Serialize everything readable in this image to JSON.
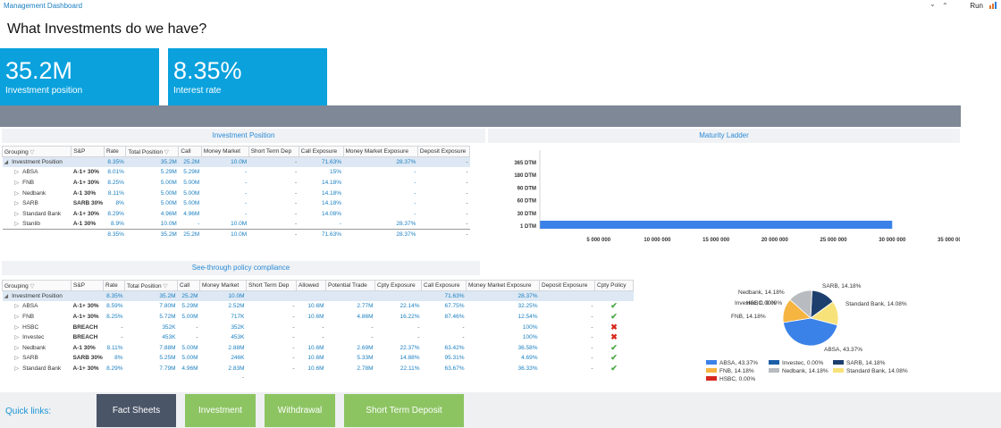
{
  "app": {
    "title": "Management Dashboard",
    "run": "Run",
    "chevron_down": "⌄",
    "chevron_up": "⌃"
  },
  "page_title": "What Investments do we have?",
  "kpis": [
    {
      "value": "35.2M",
      "label": "Investment position"
    },
    {
      "value": "8.35%",
      "label": "Interest rate"
    }
  ],
  "investment_position": {
    "title": "Investment Position",
    "columns": [
      "Grouping",
      "S&P",
      "Rate",
      "Total Position",
      "Call",
      "Money Market",
      "Short Term Dep",
      "Call Exposure",
      "Money Market Exposure",
      "Deposit Exposure"
    ],
    "rows": [
      {
        "group": "Investment Position",
        "sp": "",
        "rate": "8.35%",
        "total": "35.2M",
        "call": "25.2M",
        "mm": "10.0M",
        "std": "-",
        "callexp": "71.63%",
        "mmexp": "28.37%",
        "depexp": "-"
      },
      {
        "group": "ABSA",
        "sp": "A-1+ 30%",
        "rate": "8.01%",
        "total": "5.29M",
        "call": "5.29M",
        "mm": "-",
        "std": "-",
        "callexp": "15%",
        "mmexp": "-",
        "depexp": "-"
      },
      {
        "group": "FNB",
        "sp": "A-1+ 30%",
        "rate": "8.25%",
        "total": "5.00M",
        "call": "5.00M",
        "mm": "-",
        "std": "-",
        "callexp": "14.18%",
        "mmexp": "-",
        "depexp": "-"
      },
      {
        "group": "Nedbank",
        "sp": "A-1 30%",
        "rate": "8.11%",
        "total": "5.00M",
        "call": "5.00M",
        "mm": "-",
        "std": "-",
        "callexp": "14.18%",
        "mmexp": "-",
        "depexp": "-"
      },
      {
        "group": "SARB",
        "sp": "SARB 30%",
        "rate": "8%",
        "total": "5.00M",
        "call": "5.00M",
        "mm": "-",
        "std": "-",
        "callexp": "14.18%",
        "mmexp": "-",
        "depexp": "-"
      },
      {
        "group": "Standard Bank",
        "sp": "A-1+ 30%",
        "rate": "8.29%",
        "total": "4.96M",
        "call": "4.96M",
        "mm": "-",
        "std": "-",
        "callexp": "14.08%",
        "mmexp": "-",
        "depexp": "-"
      },
      {
        "group": "Stanlib",
        "sp": "A-1 30%",
        "rate": "8.9%",
        "total": "10.0M",
        "call": "-",
        "mm": "10.0M",
        "std": "-",
        "callexp": "-",
        "mmexp": "28.37%",
        "depexp": "-"
      }
    ],
    "total": {
      "rate": "8.35%",
      "total": "35.2M",
      "call": "25.2M",
      "mm": "10.0M",
      "std": "-",
      "callexp": "71.63%",
      "mmexp": "28.37%",
      "depexp": "-"
    }
  },
  "maturity_ladder": {
    "title": "Maturity Ladder"
  },
  "chart_data": [
    {
      "type": "bar",
      "orientation": "horizontal",
      "title": "Maturity Ladder",
      "categories": [
        "365 DTM",
        "180 DTM",
        "90 DTM",
        "60 DTM",
        "30 DTM",
        "1 DTM"
      ],
      "values": [
        0,
        0,
        0,
        0,
        0,
        30000000
      ],
      "xlim": [
        0,
        35000000
      ],
      "xticks": [
        "5 000 000",
        "10 000 000",
        "15 000 000",
        "20 000 000",
        "25 000 000",
        "30 000 000",
        "35 000 000"
      ],
      "color": "#3b82e8"
    },
    {
      "type": "pie",
      "title": "",
      "slices": [
        {
          "name": "ABSA",
          "value": 43.37,
          "label": "ABSA, 43.37%",
          "legend": "ABSA, 43.37%",
          "color": "#3b82e8"
        },
        {
          "name": "FNB",
          "value": 14.18,
          "label": "FNB, 14.18%",
          "legend": "FNB, 14.18%",
          "color": "#f6b440"
        },
        {
          "name": "Nedbank",
          "value": 14.18,
          "label": "Nedbank, 14.18%",
          "legend": "Nedbank, 14.18%",
          "color": "#b8bcc0"
        },
        {
          "name": "SARB",
          "value": 14.18,
          "label": "SARB, 14.18%",
          "legend": "SARB, 14.18%",
          "color": "#1d3f6e"
        },
        {
          "name": "Standard Bank",
          "value": 14.08,
          "label": "Standard Bank, 14.08%",
          "legend": "Standard Bank, 14.08%",
          "color": "#f7e27a"
        },
        {
          "name": "Investec",
          "value": 0,
          "label": "Investec, 0.00%",
          "legend": "Investec, 0.00%",
          "color": "#1a5fa8"
        },
        {
          "name": "HSBC",
          "value": 0,
          "label": "HSBC, 0.00%",
          "legend": "HSBC, 0.00%",
          "color": "#d8281e"
        }
      ]
    }
  ],
  "compliance": {
    "title": "See-through policy compliance",
    "columns": [
      "Grouping",
      "S&P",
      "Rate",
      "Total Position",
      "Call",
      "Money Market",
      "Short Term Dep",
      "Allowed",
      "Potential Trade",
      "Cpty Exposure",
      "Call Exposure",
      "Money Market Exposure",
      "Deposit Exposure",
      "Cpty Policy"
    ],
    "rows": [
      {
        "group": "Investment Position",
        "sp": "",
        "rate": "8.35%",
        "total": "35.2M",
        "call": "25.2M",
        "mm": "10.0M",
        "std": "",
        "allowed": "",
        "pt": "",
        "cpty": "",
        "callexp": "71.63%",
        "mmexp": "28.37%",
        "depexp": "",
        "policy": ""
      },
      {
        "group": "ABSA",
        "sp": "A-1+ 30%",
        "rate": "8.59%",
        "total": "7.80M",
        "call": "5.29M",
        "mm": "2.52M",
        "std": "-",
        "allowed": "10.6M",
        "pt": "2.77M",
        "cpty": "22.14%",
        "callexp": "67.75%",
        "mmexp": "32.25%",
        "depexp": "-",
        "policy": "check"
      },
      {
        "group": "FNB",
        "sp": "A-1+ 30%",
        "rate": "8.25%",
        "total": "5.72M",
        "call": "5.00M",
        "mm": "717K",
        "std": "-",
        "allowed": "10.6M",
        "pt": "4.86M",
        "cpty": "16.22%",
        "callexp": "87.46%",
        "mmexp": "12.54%",
        "depexp": "-",
        "policy": "check"
      },
      {
        "group": "HSBC",
        "sp": "BREACH",
        "rate": "-",
        "total": "352K",
        "call": "-",
        "mm": "352K",
        "std": "-",
        "allowed": "-",
        "pt": "-",
        "cpty": "-",
        "callexp": "-",
        "mmexp": "100%",
        "depexp": "-",
        "policy": "cross"
      },
      {
        "group": "Investec",
        "sp": "BREACH",
        "rate": "-",
        "total": "453K",
        "call": "-",
        "mm": "453K",
        "std": "-",
        "allowed": "-",
        "pt": "-",
        "cpty": "-",
        "callexp": "-",
        "mmexp": "100%",
        "depexp": "-",
        "policy": "cross"
      },
      {
        "group": "Nedbank",
        "sp": "A-1 30%",
        "rate": "8.11%",
        "total": "7.88M",
        "call": "5.00M",
        "mm": "2.88M",
        "std": "-",
        "allowed": "10.6M",
        "pt": "2.69M",
        "cpty": "22.37%",
        "callexp": "63.42%",
        "mmexp": "36.58%",
        "depexp": "-",
        "policy": "check"
      },
      {
        "group": "SARB",
        "sp": "SARB 30%",
        "rate": "8%",
        "total": "5.25M",
        "call": "5.00M",
        "mm": "246K",
        "std": "-",
        "allowed": "10.6M",
        "pt": "5.33M",
        "cpty": "14.88%",
        "callexp": "95.31%",
        "mmexp": "4.69%",
        "depexp": "-",
        "policy": "check"
      },
      {
        "group": "Standard Bank",
        "sp": "A-1+ 30%",
        "rate": "8.29%",
        "total": "7.79M",
        "call": "4.96M",
        "mm": "2.83M",
        "std": "-",
        "allowed": "10.6M",
        "pt": "2.78M",
        "cpty": "22.11%",
        "callexp": "63.67%",
        "mmexp": "36.33%",
        "depexp": "-",
        "policy": "check"
      }
    ],
    "footer": "-"
  },
  "quick_links": {
    "label": "Quick links:",
    "buttons": [
      {
        "label": "Fact Sheets",
        "color": "#4b5568"
      },
      {
        "label": "Investment",
        "color": "#8cc462"
      },
      {
        "label": "Withdrawal",
        "color": "#8cc462"
      },
      {
        "label": "Short Term Deposit",
        "color": "#8cc462"
      }
    ]
  }
}
